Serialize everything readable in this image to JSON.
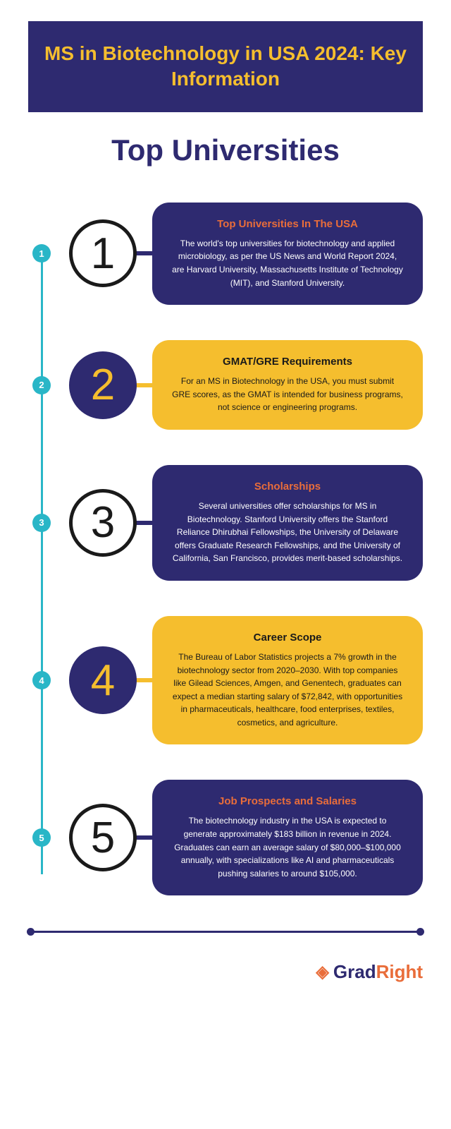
{
  "header": "MS in Biotechnology in USA 2024: Key Information",
  "subheading": "Top Universities",
  "items": [
    {
      "num": "1",
      "circle_style": "white",
      "card_style": "navy",
      "title_style": "orange",
      "title": "Top Universities In The USA",
      "body": "The world's top universities for biotechnology and applied microbiology, as per the US News and World Report 2024, are Harvard University, Massachusetts Institute of Technology (MIT), and Stanford University."
    },
    {
      "num": "2",
      "circle_style": "navy",
      "card_style": "yellow",
      "title_style": "dark",
      "title": "GMAT/GRE Requirements",
      "body": "For an MS in Biotechnology in the USA, you must submit GRE scores, as the GMAT is intended for business programs, not science or engineering programs."
    },
    {
      "num": "3",
      "circle_style": "white",
      "card_style": "navy",
      "title_style": "orange",
      "title": "Scholarships",
      "body": "Several universities offer scholarships for MS in Biotechnology. Stanford University offers the Stanford Reliance Dhirubhai Fellowships, the University of Delaware offers Graduate Research Fellowships, and the University of California, San Francisco, provides merit-based scholarships."
    },
    {
      "num": "4",
      "circle_style": "navy",
      "card_style": "yellow",
      "title_style": "dark",
      "title": "Career Scope",
      "body": "The Bureau of Labor Statistics projects a 7% growth in the biotechnology sector from 2020–2030. With top companies like Gilead Sciences, Amgen, and Genentech, graduates can expect a median starting salary of $72,842, with opportunities in pharmaceuticals, healthcare, food enterprises, textiles, cosmetics, and agriculture."
    },
    {
      "num": "5",
      "circle_style": "white",
      "card_style": "navy",
      "title_style": "orange",
      "title": "Job Prospects and Salaries",
      "body": "The biotechnology industry in the USA is expected to generate approximately $183 billion in revenue in 2024. Graduates can earn an average salary of $80,000–$100,000 annually, with specializations like AI and pharmaceuticals pushing salaries to around $105,000."
    }
  ],
  "logo": {
    "part1": "Grad",
    "part2": "Right"
  },
  "colors": {
    "navy": "#2e2a70",
    "yellow": "#f5be2e",
    "teal": "#29b6c7",
    "orange": "#e96d3a",
    "white": "#ffffff",
    "black": "#1a1a1a"
  }
}
